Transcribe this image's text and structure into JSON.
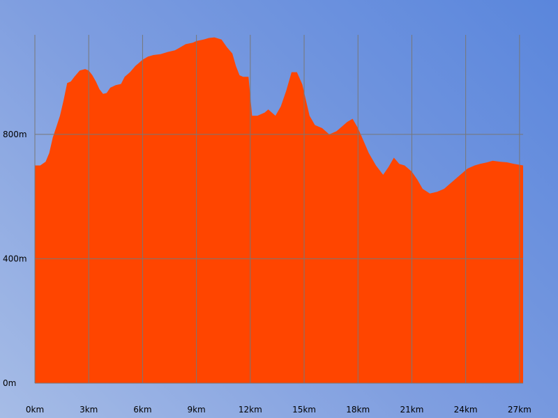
{
  "chart_data": {
    "type": "area",
    "title": "",
    "xlabel": "",
    "ylabel": "",
    "xlim": [
      0,
      27.2
    ],
    "ylim": [
      0,
      1120
    ],
    "x_ticks": [
      0,
      3,
      6,
      9,
      12,
      15,
      18,
      21,
      24,
      27
    ],
    "x_tick_labels": [
      "0km",
      "3km",
      "6km",
      "9km",
      "12km",
      "15km",
      "18km",
      "21km",
      "24km",
      "27km"
    ],
    "y_ticks": [
      0,
      400,
      800
    ],
    "y_tick_labels": [
      "0m",
      "400m",
      "800m"
    ],
    "fill_color": "#ff4500",
    "grid": true,
    "series": [
      {
        "x": [
          0,
          0.3,
          0.6,
          0.8,
          1.0,
          1.2,
          1.4,
          1.6,
          1.8,
          2.0,
          2.2,
          2.5,
          2.8,
          3.0,
          3.2,
          3.4,
          3.6,
          3.8,
          4.0,
          4.2,
          4.5,
          4.8,
          5.0,
          5.3,
          5.6,
          5.8,
          6.0,
          6.3,
          6.6,
          7.0,
          7.4,
          7.8,
          8.1,
          8.4,
          8.8,
          9.0,
          9.4,
          9.7,
          10.0,
          10.4,
          10.7,
          11.0,
          11.2,
          11.4,
          11.6,
          11.9,
          12.1,
          12.4,
          12.8,
          13.0,
          13.4,
          13.7,
          14.0,
          14.3,
          14.6,
          14.9,
          15.1,
          15.3,
          15.6,
          16.0,
          16.4,
          16.8,
          17.1,
          17.4,
          17.7,
          18.0,
          18.3,
          18.6,
          19.0,
          19.4,
          19.7,
          20.0,
          20.3,
          20.6,
          21.0,
          21.3,
          21.6,
          22.0,
          22.4,
          22.8,
          23.1,
          23.4,
          23.8,
          24.1,
          24.5,
          24.8,
          25.2,
          25.5,
          25.9,
          26.3,
          26.7,
          27.2
        ],
        "y": [
          700,
          700,
          712,
          740,
          790,
          825,
          860,
          910,
          965,
          970,
          985,
          1005,
          1010,
          1005,
          990,
          970,
          945,
          930,
          933,
          950,
          958,
          962,
          985,
          1000,
          1020,
          1030,
          1040,
          1050,
          1055,
          1058,
          1065,
          1070,
          1080,
          1090,
          1095,
          1100,
          1105,
          1110,
          1112,
          1105,
          1080,
          1060,
          1020,
          990,
          985,
          985,
          860,
          860,
          870,
          880,
          860,
          890,
          940,
          1000,
          1000,
          960,
          910,
          860,
          830,
          820,
          800,
          810,
          825,
          840,
          850,
          820,
          780,
          740,
          700,
          670,
          695,
          725,
          705,
          700,
          680,
          655,
          625,
          610,
          615,
          625,
          640,
          655,
          675,
          690,
          700,
          705,
          710,
          715,
          712,
          710,
          705,
          700
        ]
      }
    ]
  }
}
